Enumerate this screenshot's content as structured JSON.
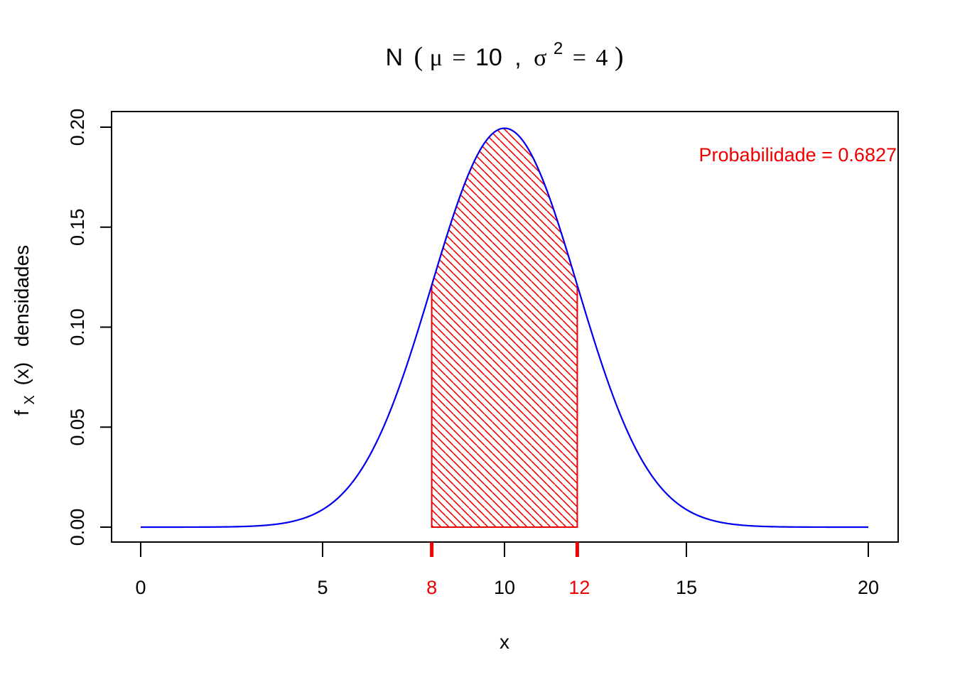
{
  "chart_data": {
    "type": "area",
    "title_parts": {
      "n": "N",
      "mu": "μ",
      "eq": "=",
      "mean": "10",
      "comma": ",",
      "sigma": "σ",
      "sup": "2",
      "variance": "4"
    },
    "xlabel": "x",
    "ylabel_parts": {
      "f": "f",
      "sub": "X",
      "arg": "(x)",
      "word": "densidades"
    },
    "mean": 10,
    "variance": 4,
    "sd": 2,
    "xlim": [
      0,
      20
    ],
    "ylim": [
      0,
      0.2
    ],
    "x_ticks": [
      "0",
      "5",
      "10",
      "15",
      "20"
    ],
    "x_tick_values": [
      0,
      5,
      10,
      15,
      20
    ],
    "y_ticks": [
      "0.00",
      "0.05",
      "0.10",
      "0.15",
      "0.20"
    ],
    "y_tick_values": [
      0,
      0.05,
      0.1,
      0.15,
      0.2
    ],
    "highlight_interval": [
      8,
      12
    ],
    "highlight_labels": [
      "8",
      "12"
    ],
    "annotation": "Probabilidade = 0.6827",
    "colors": {
      "curve": "#0000ee",
      "highlight": "#ee0000",
      "axis": "#000000"
    },
    "series": [
      {
        "x": [
          0,
          0.5,
          1,
          1.5,
          2,
          2.5,
          3,
          3.5,
          4,
          4.5,
          5,
          5.5,
          6,
          6.5,
          7,
          7.5,
          8,
          8.5,
          9,
          9.5,
          10,
          10.5,
          11,
          11.5,
          12,
          12.5,
          13,
          13.5,
          14,
          14.5,
          15,
          15.5,
          16,
          16.5,
          17,
          17.5,
          18,
          18.5,
          19,
          19.5,
          20
        ],
        "y": [
          0.0,
          0.0,
          0.0,
          0.0,
          0.0001,
          0.0002,
          0.0004,
          0.001,
          0.0022,
          0.0045,
          0.0088,
          0.0159,
          0.027,
          0.0431,
          0.0648,
          0.0913,
          0.121,
          0.1506,
          0.176,
          0.1933,
          0.1995,
          0.1933,
          0.176,
          0.1506,
          0.121,
          0.0913,
          0.0648,
          0.0431,
          0.027,
          0.0159,
          0.0088,
          0.0045,
          0.0022,
          0.001,
          0.0004,
          0.0002,
          0.0001,
          0.0,
          0.0,
          0.0,
          0.0
        ]
      }
    ]
  }
}
